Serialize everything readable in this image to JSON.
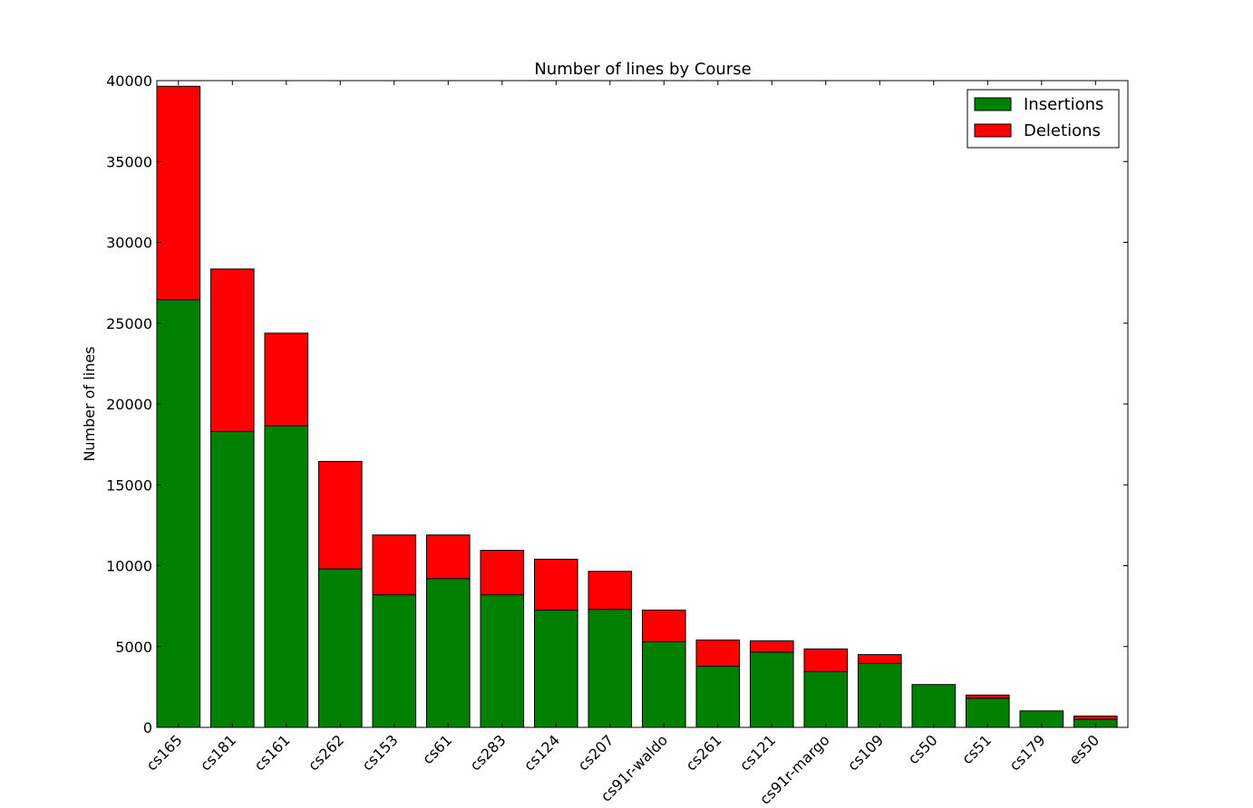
{
  "chart_data": {
    "type": "bar",
    "stacked": true,
    "title": "Number of lines by Course",
    "xlabel": "",
    "ylabel": "Number of lines",
    "ylim": [
      0,
      40000
    ],
    "yticks": [
      0,
      5000,
      10000,
      15000,
      20000,
      25000,
      30000,
      35000,
      40000
    ],
    "categories": [
      "cs165",
      "cs181",
      "cs161",
      "cs262",
      "cs153",
      "cs61",
      "cs283",
      "cs124",
      "cs207",
      "cs91r-waldo",
      "cs261",
      "cs121",
      "cs91r-margo",
      "cs109",
      "cs50",
      "cs51",
      "cs179",
      "es50"
    ],
    "series": [
      {
        "name": "Insertions",
        "color": "#008000",
        "values": [
          26450,
          18300,
          18650,
          9800,
          8200,
          9200,
          8200,
          7250,
          7300,
          5300,
          3780,
          4650,
          3450,
          3950,
          2650,
          1800,
          1020,
          500
        ]
      },
      {
        "name": "Deletions",
        "color": "#ff0000",
        "values": [
          13200,
          10050,
          5730,
          6650,
          3700,
          2700,
          2750,
          3150,
          2350,
          1950,
          1620,
          700,
          1400,
          550,
          0,
          200,
          0,
          200
        ]
      }
    ],
    "legend": "top-right",
    "grid": false
  }
}
